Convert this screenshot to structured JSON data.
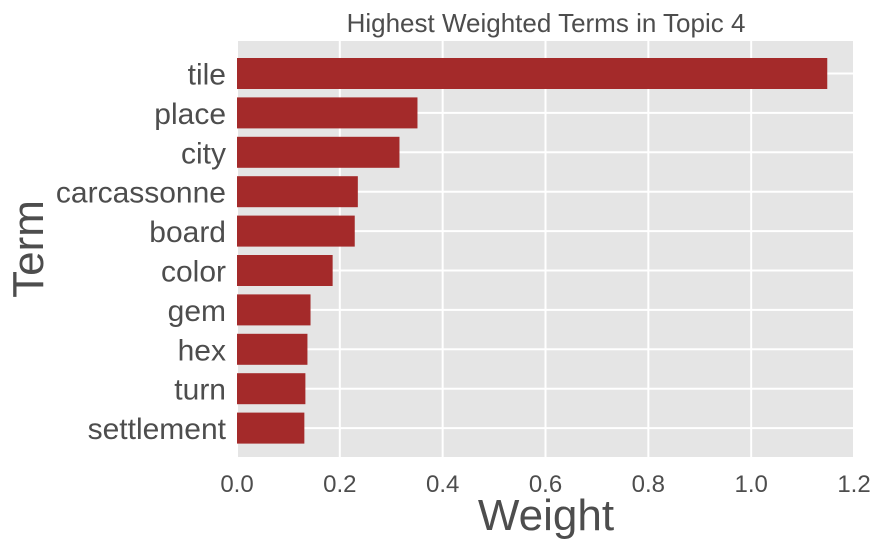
{
  "chart_data": {
    "type": "bar",
    "orientation": "horizontal",
    "title": "Highest Weighted Terms in Topic 4",
    "xlabel": "Weight",
    "ylabel": "Term",
    "categories": [
      "tile",
      "place",
      "city",
      "carcassonne",
      "board",
      "color",
      "gem",
      "hex",
      "turn",
      "settlement"
    ],
    "values": [
      1.148,
      0.351,
      0.316,
      0.235,
      0.229,
      0.186,
      0.143,
      0.137,
      0.133,
      0.131
    ],
    "xlim": [
      0,
      1.2
    ],
    "xticks": [
      "0.0",
      "0.2",
      "0.4",
      "0.6",
      "0.8",
      "1.0",
      "1.2"
    ],
    "grid": true,
    "colors": {
      "bar": "#a42a2a",
      "plot_background": "#e5e5e5",
      "grid": "#ffffff",
      "text": "#4d4d4d"
    }
  }
}
